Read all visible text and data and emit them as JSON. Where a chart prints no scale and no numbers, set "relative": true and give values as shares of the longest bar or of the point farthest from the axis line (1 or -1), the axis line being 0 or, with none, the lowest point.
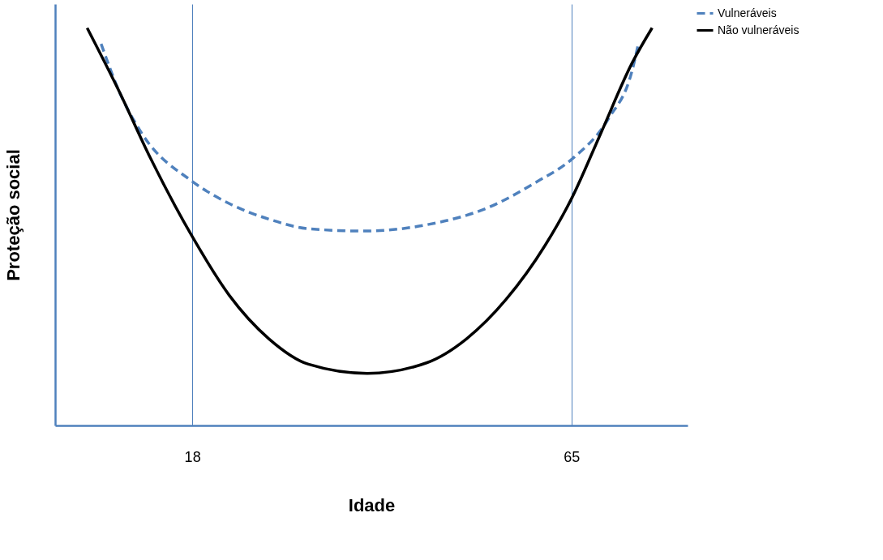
{
  "chart_data": {
    "type": "line",
    "xlabel": "Idade",
    "ylabel": "Proteção social",
    "relative": true,
    "xlim": [
      1,
      79.4
    ],
    "xticks": [
      18,
      65
    ],
    "grid": "x",
    "legend": "right",
    "marker": "none",
    "series": [
      {
        "name": "Vulneráveis",
        "color": "#4f81bd",
        "line_style": "dashed",
        "x": [
          6.7,
          8.9,
          11.8,
          18,
          22.6,
          27.5,
          32.4,
          39.2,
          47.1,
          54.9,
          60.8,
          65,
          69.6,
          72.5,
          73.3
        ],
        "values": [
          0.96,
          0.842,
          0.733,
          0.614,
          0.558,
          0.519,
          0.495,
          0.489,
          0.505,
          0.55,
          0.614,
          0.669,
          0.772,
          0.891,
          0.96
        ]
      },
      {
        "name": "Não vulneráveis",
        "color": "#000000",
        "line_style": "solid",
        "x": [
          4.97,
          8.9,
          12.8,
          18,
          22.6,
          27.5,
          32.4,
          39.7,
          47.1,
          52,
          56.9,
          61.8,
          65,
          68.6,
          72.5,
          75
        ],
        "values": [
          1.0,
          0.842,
          0.673,
          0.475,
          0.327,
          0.218,
          0.154,
          0.131,
          0.158,
          0.218,
          0.317,
          0.455,
          0.57,
          0.733,
          0.911,
          1.0
        ]
      }
    ]
  }
}
